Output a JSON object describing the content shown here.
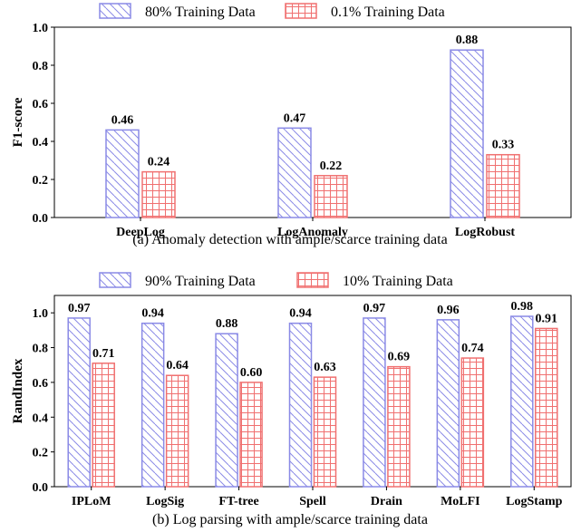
{
  "chart_data": [
    {
      "type": "bar",
      "categories": [
        "DeepLog",
        "LogAnomaly",
        "LogRobust"
      ],
      "series": [
        {
          "name": "80% Training Data",
          "values": [
            0.46,
            0.47,
            0.88
          ]
        },
        {
          "name": "0.1% Training Data",
          "values": [
            0.24,
            0.22,
            0.33
          ]
        }
      ],
      "value_labels": [
        [
          "0.46",
          "0.47",
          "0.88"
        ],
        [
          "0.24",
          "0.22",
          "0.33"
        ]
      ],
      "ylabel": "F1-score",
      "ylim": [
        0,
        1.0
      ],
      "yticks": [
        "0.0",
        "0.2",
        "0.4",
        "0.6",
        "0.8",
        "1.0"
      ],
      "caption": "(a)  Anomaly detection with ample/scarce training data",
      "legend_position": "top-center",
      "grid": false
    },
    {
      "type": "bar",
      "categories": [
        "IPLoM",
        "LogSig",
        "FT-tree",
        "Spell",
        "Drain",
        "MoLFI",
        "LogStamp"
      ],
      "series": [
        {
          "name": "90% Training Data",
          "values": [
            0.97,
            0.94,
            0.88,
            0.94,
            0.97,
            0.96,
            0.98
          ]
        },
        {
          "name": "10% Training Data",
          "values": [
            0.71,
            0.64,
            0.6,
            0.63,
            0.69,
            0.74,
            0.91
          ]
        }
      ],
      "value_labels": [
        [
          "0.97",
          "0.94",
          "0.88",
          "0.94",
          "0.97",
          "0.96",
          "0.98"
        ],
        [
          "0.71",
          "0.64",
          "0.60",
          "0.63",
          "0.69",
          "0.74",
          "0.91"
        ]
      ],
      "ylabel": "RandIndex",
      "ylim": [
        0,
        1.1
      ],
      "yticks": [
        "0.0",
        "0.2",
        "0.4",
        "0.6",
        "0.8",
        "1.0"
      ],
      "caption": "(b)  Log parsing with ample/scarce training data",
      "legend_position": "top-center",
      "grid": false
    }
  ],
  "colors": {
    "series1": "#8a8ae6",
    "series2": "#f07070"
  }
}
